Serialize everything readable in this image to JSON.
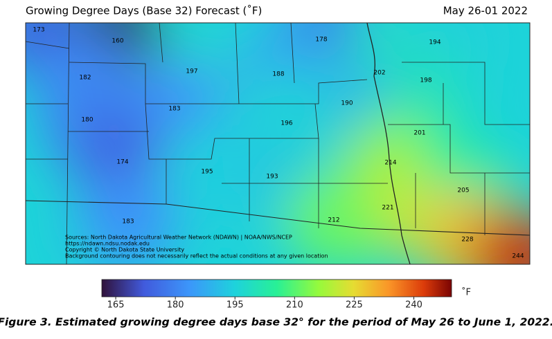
{
  "title": "Growing Degree Days (Base 32) Forecast (˚F)",
  "date": "May 26-01 2022",
  "points": [
    173,
    160,
    178,
    194,
    197,
    188,
    202,
    182,
    198,
    190,
    183,
    180,
    196,
    201,
    174,
    214,
    195,
    193,
    205,
    221,
    183,
    212,
    228,
    244
  ],
  "sources": [
    "Sources: North Dakota Agricultural Weather Network (NDAWN) | NOAA/NWS/NCEP",
    "https://ndawn.ndsu.nodak.edu",
    "Copyright © North Dakota State University",
    "Background contouring does not necessarily reflect the actual conditions at any given location"
  ],
  "colorbar": {
    "lim": [
      161.5,
      249.5
    ],
    "ticks": [
      165,
      180,
      195,
      210,
      225,
      240
    ],
    "unit": "˚F"
  },
  "caption": "Figure 3.  Estimated growing degree days base 32° for the period of May 26 to June 1, 2022."
}
